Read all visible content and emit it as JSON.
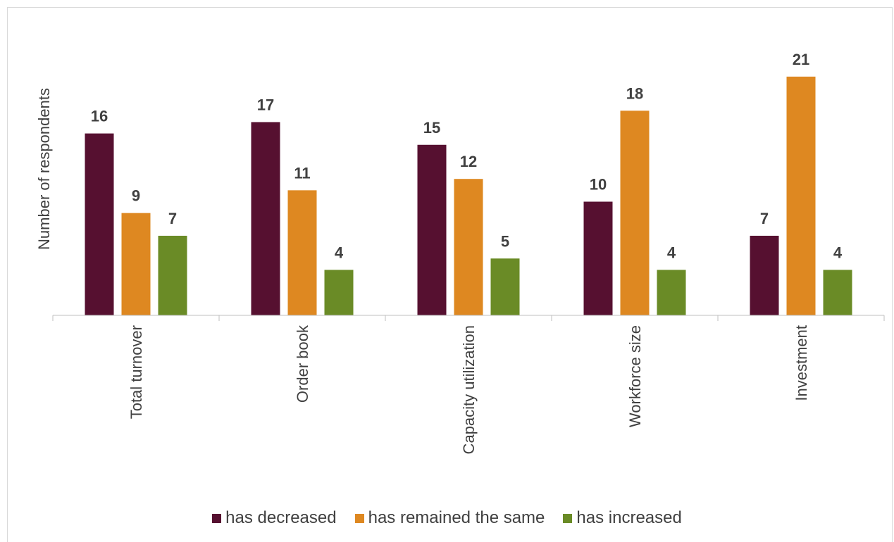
{
  "chart_data": {
    "type": "bar",
    "ylabel": "Number of respondents",
    "xlabel": "",
    "categories": [
      "Total turnover",
      "Order book",
      "Capacity utilization",
      "Workforce size",
      "Investment"
    ],
    "series": [
      {
        "name": "has decreased",
        "color": "#561030",
        "values": [
          16,
          17,
          15,
          10,
          7
        ]
      },
      {
        "name": "has remained the same",
        "color": "#DE8821",
        "values": [
          9,
          11,
          12,
          18,
          21
        ]
      },
      {
        "name": "has increased",
        "color": "#6A8B26",
        "values": [
          7,
          4,
          5,
          4,
          4
        ]
      }
    ],
    "ylim": [
      0,
      23
    ],
    "grid": false,
    "legend_position": "bottom",
    "data_labels": true
  }
}
